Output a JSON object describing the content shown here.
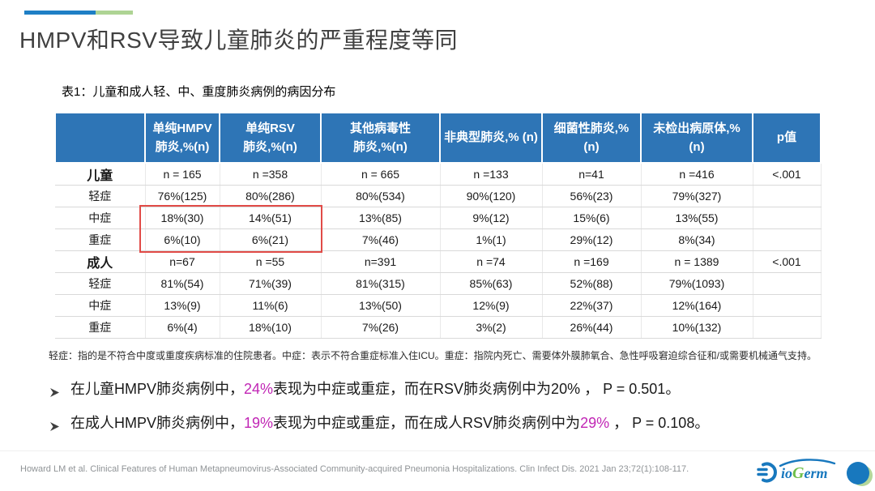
{
  "slide": {
    "title": "HMPV和RSV导致儿童肺炎的严重程度等同",
    "table_caption": "表1：儿童和成人轻、中、重度肺炎病例的病因分布"
  },
  "table": {
    "headers": [
      "",
      "单纯HMPV\n肺炎,%(n)",
      "单纯RSV\n肺炎,%(n)",
      "其他病毒性\n肺炎,%(n)",
      "非典型肺炎,% (n)",
      "细菌性肺炎,%\n(n)",
      "未检出病原体,%\n(n)",
      "p值"
    ],
    "rows": [
      {
        "label": "儿童",
        "bold": true,
        "cells": [
          "n = 165",
          "n =358",
          "n = 665",
          "n =133",
          "n=41",
          "n =416",
          "<.001"
        ]
      },
      {
        "label": "轻症",
        "bold": false,
        "cells": [
          "76%(125)",
          "80%(286)",
          "80%(534)",
          "90%(120)",
          "56%(23)",
          "79%(327)",
          ""
        ]
      },
      {
        "label": "中症",
        "bold": false,
        "cells": [
          "18%(30)",
          "14%(51)",
          "13%(85)",
          "9%(12)",
          "15%(6)",
          "13%(55)",
          ""
        ]
      },
      {
        "label": "重症",
        "bold": false,
        "cells": [
          "6%(10)",
          "6%(21)",
          "7%(46)",
          "1%(1)",
          "29%(12)",
          "8%(34)",
          ""
        ]
      },
      {
        "label": "成人",
        "bold": true,
        "cells": [
          "n=67",
          "n =55",
          "n=391",
          "n =74",
          "n =169",
          "n = 1389",
          "<.001"
        ]
      },
      {
        "label": "轻症",
        "bold": false,
        "cells": [
          "81%(54)",
          "71%(39)",
          "81%(315)",
          "85%(63)",
          "52%(88)",
          "79%(1093)",
          ""
        ]
      },
      {
        "label": "中症",
        "bold": false,
        "cells": [
          "13%(9)",
          "11%(6)",
          "13%(50)",
          "12%(9)",
          "22%(37)",
          "12%(164)",
          ""
        ]
      },
      {
        "label": "重症",
        "bold": false,
        "cells": [
          "6%(4)",
          "18%(10)",
          "7%(26)",
          "3%(2)",
          "26%(44)",
          "10%(132)",
          ""
        ]
      }
    ]
  },
  "footnote": "轻症：指的是不符合中度或重度疾病标准的住院患者。中症：表示不符合重症标准入住ICU。重症：指院内死亡、需要体外膜肺氧合、急性呼吸窘迫综合征和/或需要机械通气支持。",
  "bullets": {
    "b1": {
      "pre": "在儿童HMPV肺炎病例中，",
      "hl": "24%",
      "post": "表现为中症或重症，而在RSV肺炎病例中为20% ， P = 0.501。"
    },
    "b2": {
      "pre": "在成人HMPV肺炎病例中，",
      "hl": "19%",
      "mid": "表现为中症或重症，而在成人RSV肺炎病例中为",
      "hl2": "29%",
      "post": " ， P = 0.108。"
    }
  },
  "citation": "Howard LM et al. Clinical Features of Human Metapneumovirus-Associated Community-acquired Pneumonia Hospitalizations. Clin Infect Dis. 2021 Jan 23;72(1):108-117.",
  "logo": {
    "part1": "io",
    "part2": "G",
    "part3": "erm"
  },
  "colors": {
    "header_blue": "#2E75B6",
    "highlight_magenta": "#C126B5",
    "red_box": "#E14B47",
    "accent_bar_blue": "#1E7FC5",
    "accent_bar_green": "#AED494",
    "logo_blue": "#1878BE",
    "logo_green": "#6EBE49"
  }
}
